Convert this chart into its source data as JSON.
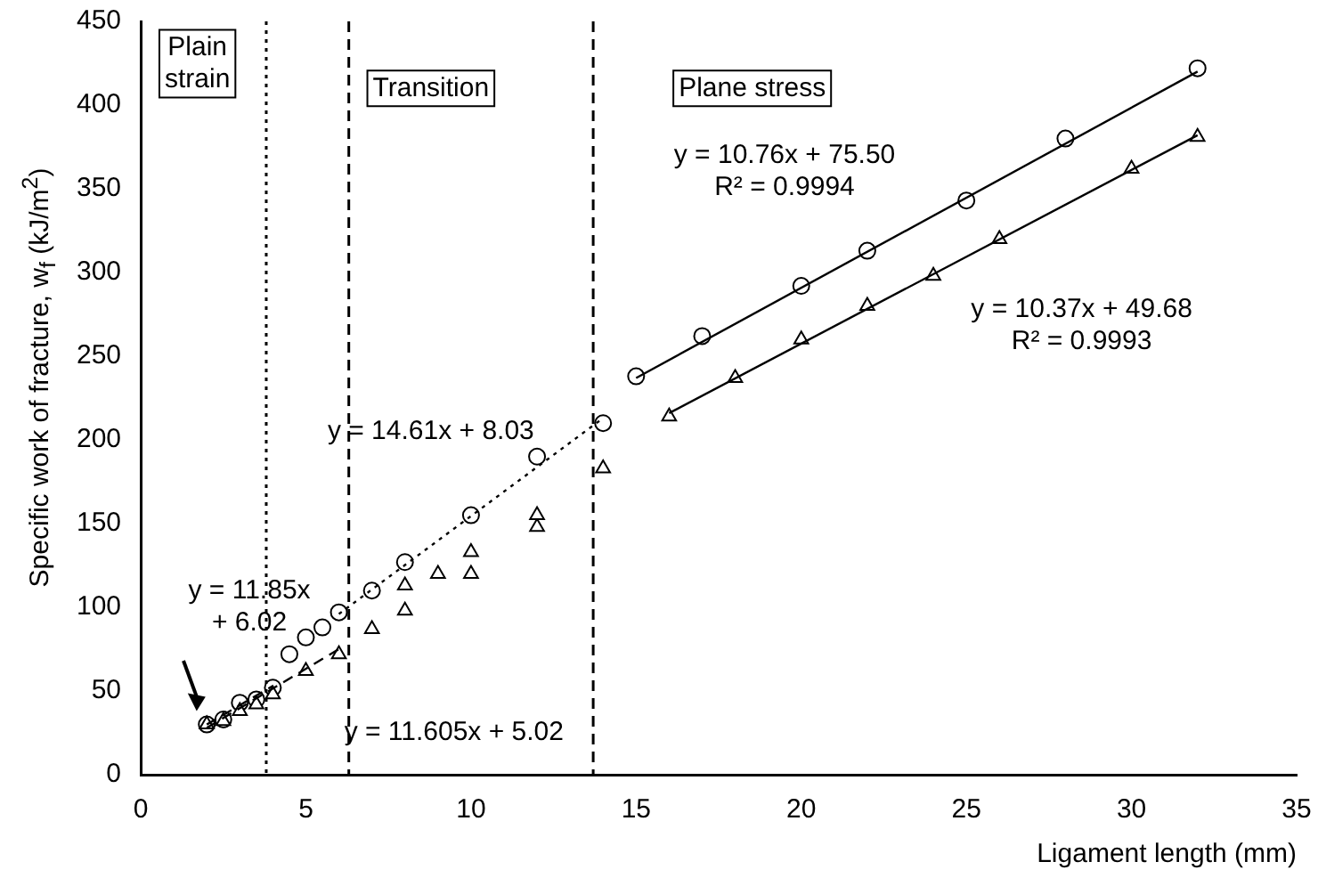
{
  "chart_data": {
    "type": "scatter",
    "xlabel": "Ligament length (mm)",
    "ylabel": "Specific work of fracture, w$_{f}$ (kJ/m$^{2}$)",
    "xlim": [
      0,
      35
    ],
    "xticks": [
      0,
      5,
      10,
      15,
      20,
      25,
      30,
      35
    ],
    "ylim": [
      0,
      450
    ],
    "yticks": [
      0,
      50,
      100,
      150,
      200,
      250,
      300,
      350,
      400,
      450
    ],
    "grid": false,
    "legend": false,
    "series": [
      {
        "color": "#000000",
        "marker": "circle",
        "x": [
          2,
          2.5,
          3,
          3.5,
          4,
          4.5,
          5,
          5.5,
          6,
          7,
          8,
          10,
          12,
          14,
          15,
          17,
          20,
          22,
          25,
          28,
          32
        ],
        "values": [
          30,
          33,
          43,
          45,
          52,
          72,
          82,
          88,
          97,
          110,
          127,
          155,
          190,
          210,
          238,
          262,
          292,
          313,
          343,
          380,
          422
        ]
      },
      {
        "color": "#000000",
        "marker": "triangle",
        "x": [
          2,
          2.5,
          3,
          3.5,
          4,
          5,
          6,
          7,
          8,
          8,
          9,
          10,
          10,
          12,
          12,
          14,
          16,
          18,
          20,
          22,
          24,
          26,
          30,
          32
        ],
        "values": [
          30,
          32,
          38,
          42,
          48,
          62,
          72,
          87,
          98,
          113,
          120,
          120,
          133,
          148,
          155,
          183,
          214,
          237,
          260,
          280,
          298,
          320,
          362,
          381
        ]
      },
      {
        "type": "line",
        "color": "#000000",
        "marker": "none",
        "line_style": "solid",
        "x": [
          15,
          32
        ],
        "values": [
          237,
          420
        ]
      },
      {
        "type": "line",
        "color": "#000000",
        "marker": "none",
        "line_style": "solid",
        "x": [
          16,
          32
        ],
        "values": [
          216,
          382
        ]
      },
      {
        "type": "line",
        "color": "#000000",
        "marker": "none",
        "line_style": "dotted",
        "x": [
          6,
          14
        ],
        "values": [
          96,
          213
        ]
      },
      {
        "type": "line",
        "color": "#000000",
        "marker": "none",
        "line_style": "dashed",
        "x": [
          2,
          6
        ],
        "values": [
          28,
          75
        ]
      },
      {
        "type": "line",
        "color": "#000000",
        "marker": "none",
        "line_style": "dashed",
        "x": [
          2,
          4
        ],
        "values": [
          30,
          53
        ]
      }
    ],
    "ref_lines": [
      {
        "axis": "x",
        "value": 3.8,
        "line_style": "dotted"
      },
      {
        "axis": "x",
        "value": 13.7,
        "line_style": "dashed"
      },
      {
        "axis": "x",
        "value": 6.3,
        "line_style": "dashed"
      }
    ],
    "annotations": [
      "Plain\nstrain",
      "Transition",
      "Plane stress",
      "y = 10.76x + 75.50\nR² = 0.9994",
      "y = 10.37x + 49.68\nR² = 0.9993",
      "y = 14.61x + 8.03",
      "y = 11.85x\n+ 6.02",
      "y = 11.605x + 5.02"
    ]
  }
}
